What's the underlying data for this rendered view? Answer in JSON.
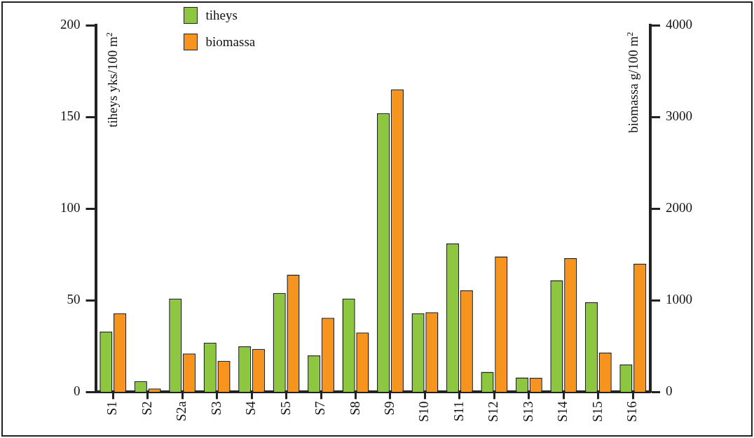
{
  "chart_data": {
    "type": "bar",
    "categories": [
      "S1",
      "S2",
      "S2a",
      "S3",
      "S4",
      "S5",
      "S7",
      "S8",
      "S9",
      "S10",
      "S11",
      "S12",
      "S13",
      "S14",
      "S15",
      "S16"
    ],
    "series": [
      {
        "name": "tiheys",
        "color": "#8dc63f",
        "values": [
          33,
          6,
          51,
          27,
          25,
          54,
          20,
          51,
          152,
          43,
          81,
          11,
          8,
          61,
          49,
          15
        ]
      },
      {
        "name": "biomassa",
        "color": "#f7941d",
        "axis": "y2",
        "values": [
          860,
          40,
          420,
          340,
          470,
          1280,
          810,
          650,
          3300,
          870,
          1110,
          1480,
          155,
          1460,
          430,
          1400
        ]
      }
    ],
    "ylabel": "tiheys yks/100 m$^{2}$",
    "y2label": "biomassa g/100 m$^{2}$",
    "ylim": [
      0,
      200
    ],
    "yticks": [
      0,
      50,
      100,
      150,
      200
    ],
    "y2lim": [
      0,
      4000
    ],
    "y2ticks": [
      0,
      1000,
      2000,
      3000,
      4000
    ],
    "grid": false,
    "legend": "top left"
  }
}
